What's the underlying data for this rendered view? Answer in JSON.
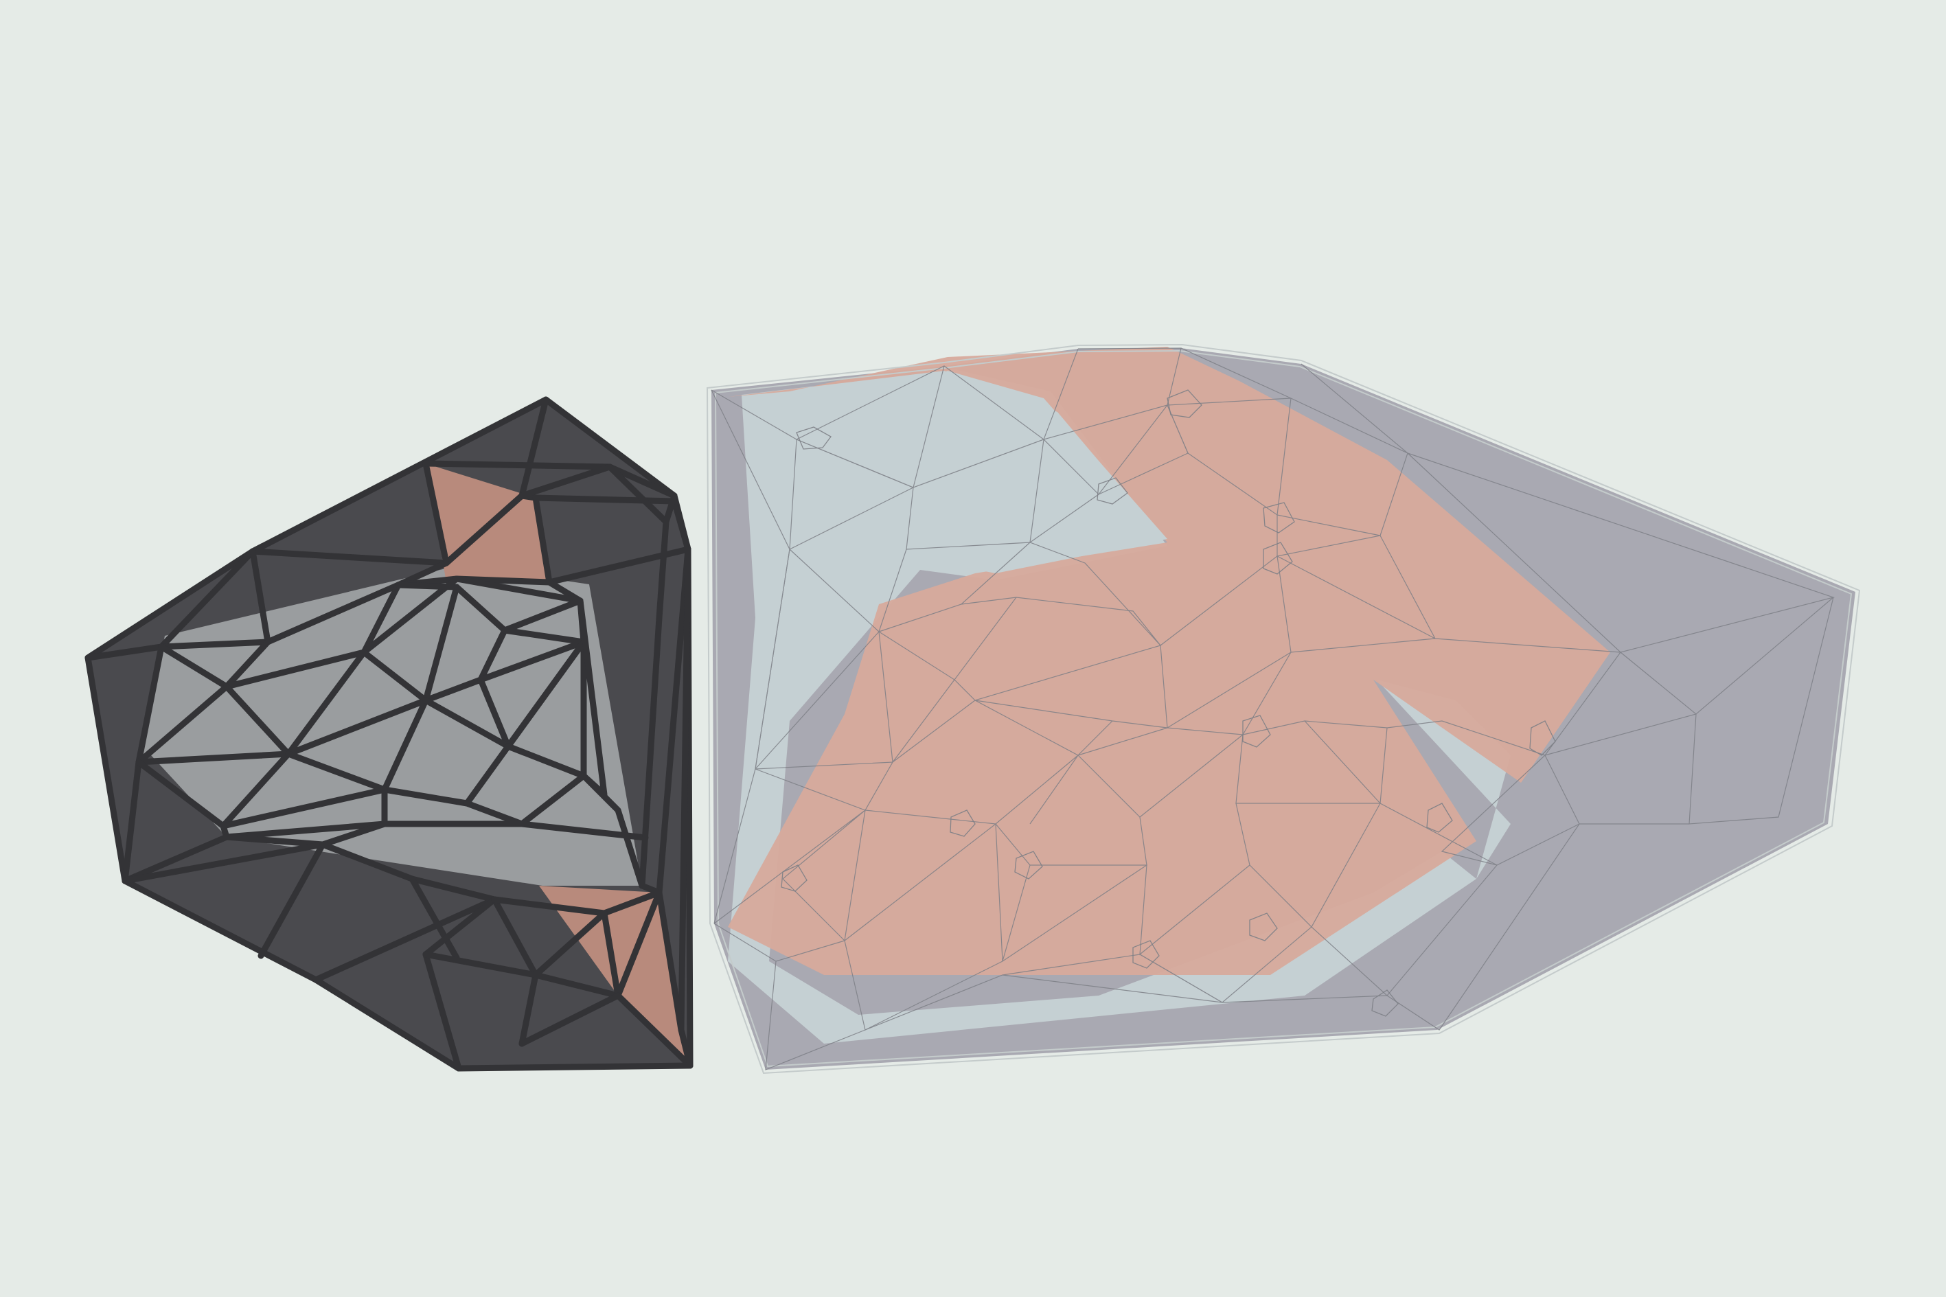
{
  "scene": {
    "background": "#e5ebe7",
    "left_figure": {
      "kind": "thick-edged triangulated mesh",
      "colors": {
        "dark_fill": "#4a4a4e",
        "light_fill": "#9a9d9f",
        "accent_fill": "#b88a7c",
        "edge": "#333336"
      }
    },
    "right_figure": {
      "kind": "translucent thin-edged triangulated mesh",
      "colors": {
        "outer_fill": "#a9a9b2",
        "blue_fill": "#c5d0d3",
        "salmon_fill": "#d7aa9c",
        "edge": "#7d7f86",
        "hull_edge": "#c4cbcb"
      }
    }
  }
}
